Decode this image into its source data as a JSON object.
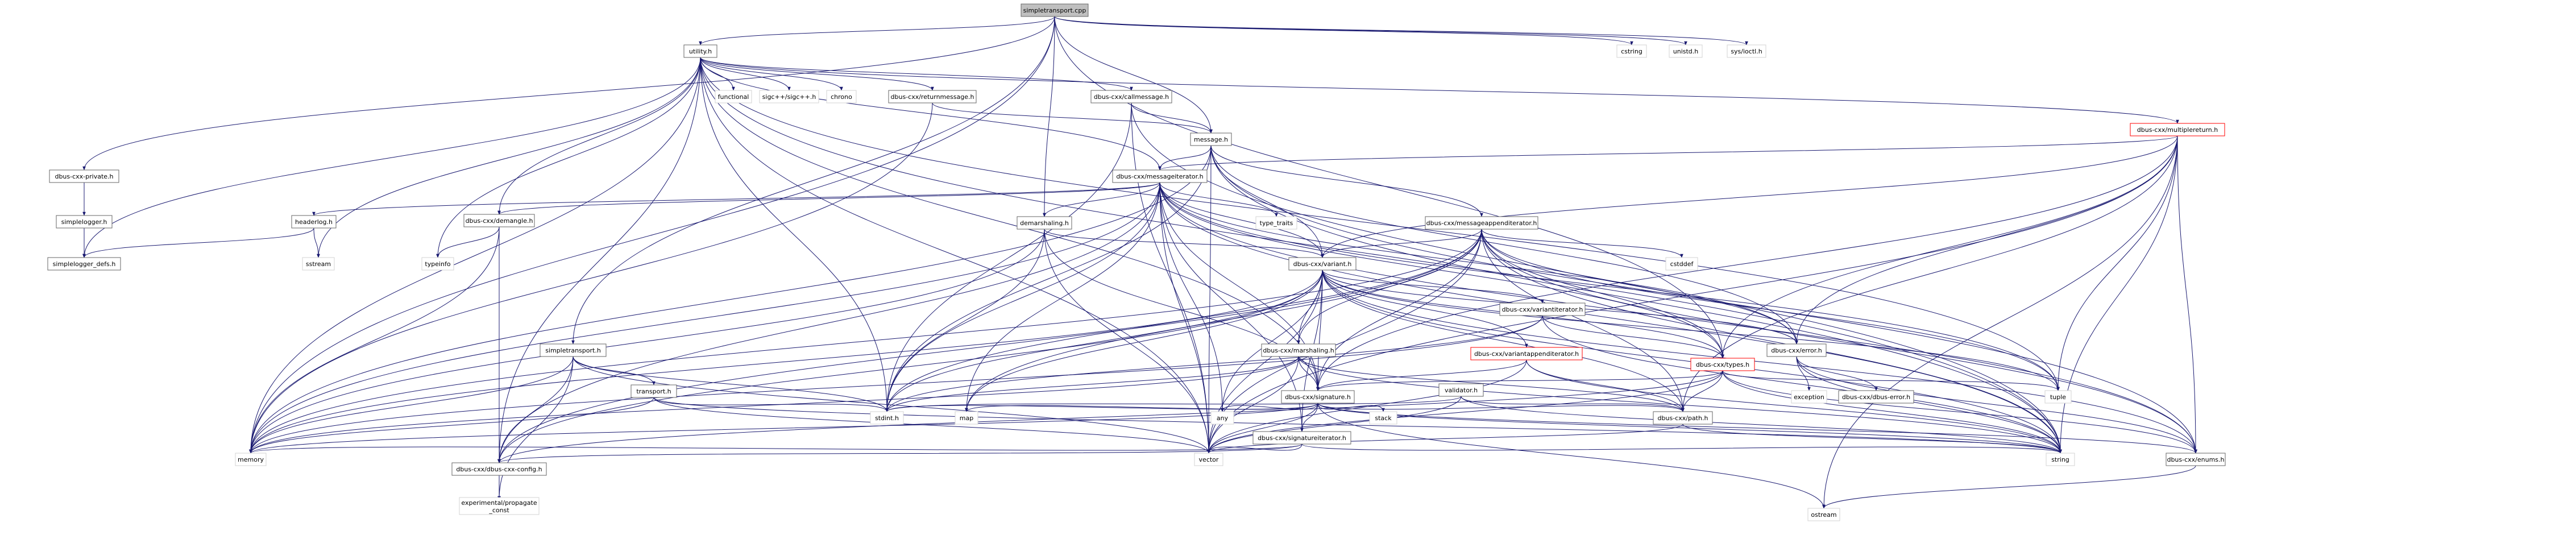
{
  "graph": {
    "nodes": [
      {
        "id": "simpletransport_cpp",
        "label": "simpletransport.cpp",
        "kind": "root"
      },
      {
        "id": "utility_h",
        "label": "utility.h",
        "kind": "internal"
      },
      {
        "id": "cstring",
        "label": "cstring",
        "kind": "system"
      },
      {
        "id": "unistd_h",
        "label": "unistd.h",
        "kind": "system"
      },
      {
        "id": "sys_ioctl_h",
        "label": "sys/ioctl.h",
        "kind": "system"
      },
      {
        "id": "functional",
        "label": "functional",
        "kind": "system"
      },
      {
        "id": "sigc_h",
        "label": "sigc++/sigc++.h",
        "kind": "system"
      },
      {
        "id": "chrono",
        "label": "chrono",
        "kind": "system"
      },
      {
        "id": "returnmessage_h",
        "label": "dbus-cxx/returnmessage.h",
        "kind": "internal"
      },
      {
        "id": "callmessage_h",
        "label": "dbus-cxx/callmessage.h",
        "kind": "internal"
      },
      {
        "id": "multiplereturn_h",
        "label": "dbus-cxx/multiplereturn.h",
        "kind": "internal-red"
      },
      {
        "id": "message_h",
        "label": "message.h",
        "kind": "internal"
      },
      {
        "id": "dbus_private_h",
        "label": "dbus-cxx-private.h",
        "kind": "internal"
      },
      {
        "id": "simplelogger_h",
        "label": "simplelogger.h",
        "kind": "internal"
      },
      {
        "id": "simplelogger_defs_h",
        "label": "simplelogger_defs.h",
        "kind": "internal"
      },
      {
        "id": "messageiterator_h",
        "label": "dbus-cxx/messageiterator.h",
        "kind": "internal"
      },
      {
        "id": "headerlog_h",
        "label": "headerlog.h",
        "kind": "internal"
      },
      {
        "id": "sstream",
        "label": "sstream",
        "kind": "system"
      },
      {
        "id": "demangle_h",
        "label": "dbus-cxx/demangle.h",
        "kind": "internal"
      },
      {
        "id": "typeinfo",
        "label": "typeinfo",
        "kind": "system"
      },
      {
        "id": "demarshaling_h",
        "label": "demarshaling.h",
        "kind": "internal"
      },
      {
        "id": "type_traits",
        "label": "type_traits",
        "kind": "system"
      },
      {
        "id": "messageappenditerator_h",
        "label": "dbus-cxx/messageappenditerator.h",
        "kind": "internal"
      },
      {
        "id": "cstddef",
        "label": "cstddef",
        "kind": "system"
      },
      {
        "id": "variant_h",
        "label": "dbus-cxx/variant.h",
        "kind": "internal"
      },
      {
        "id": "variantiterator_h",
        "label": "dbus-cxx/variantiterator.h",
        "kind": "internal"
      },
      {
        "id": "simpletransport_h",
        "label": "simpletransport.h",
        "kind": "internal"
      },
      {
        "id": "marshaling_h",
        "label": "dbus-cxx/marshaling.h",
        "kind": "internal"
      },
      {
        "id": "variantappenditerator_h",
        "label": "dbus-cxx/variantappenditerator.h",
        "kind": "internal-red"
      },
      {
        "id": "types_h",
        "label": "dbus-cxx/types.h",
        "kind": "internal-red"
      },
      {
        "id": "error_h",
        "label": "dbus-cxx/error.h",
        "kind": "internal"
      },
      {
        "id": "exception",
        "label": "exception",
        "kind": "system"
      },
      {
        "id": "dbus_error_h",
        "label": "dbus-cxx/dbus-error.h",
        "kind": "internal"
      },
      {
        "id": "tuple",
        "label": "tuple",
        "kind": "system"
      },
      {
        "id": "transport_h",
        "label": "transport.h",
        "kind": "internal"
      },
      {
        "id": "signature_h",
        "label": "dbus-cxx/signature.h",
        "kind": "internal"
      },
      {
        "id": "validator_h",
        "label": "validator.h",
        "kind": "internal"
      },
      {
        "id": "stdint_h",
        "label": "stdint.h",
        "kind": "system"
      },
      {
        "id": "map",
        "label": "map",
        "kind": "system"
      },
      {
        "id": "any",
        "label": "any",
        "kind": "system"
      },
      {
        "id": "stack",
        "label": "stack",
        "kind": "system"
      },
      {
        "id": "path_h",
        "label": "dbus-cxx/path.h",
        "kind": "internal"
      },
      {
        "id": "signatureiterator_h",
        "label": "dbus-cxx/signatureiterator.h",
        "kind": "internal"
      },
      {
        "id": "memory",
        "label": "memory",
        "kind": "system"
      },
      {
        "id": "dbus_cxx_config_h",
        "label": "dbus-cxx/dbus-cxx-config.h",
        "kind": "internal"
      },
      {
        "id": "vector",
        "label": "vector",
        "kind": "system"
      },
      {
        "id": "string",
        "label": "string",
        "kind": "system"
      },
      {
        "id": "enums_h",
        "label": "dbus-cxx/enums.h",
        "kind": "internal"
      },
      {
        "id": "propagate_const",
        "label": "experimental/propagate\n_const",
        "kind": "system"
      },
      {
        "id": "ostream",
        "label": "ostream",
        "kind": "system"
      }
    ],
    "edges": [
      [
        "simpletransport_cpp",
        "utility_h"
      ],
      [
        "simpletransport_cpp",
        "cstring"
      ],
      [
        "simpletransport_cpp",
        "unistd_h"
      ],
      [
        "simpletransport_cpp",
        "sys_ioctl_h"
      ],
      [
        "simpletransport_cpp",
        "dbus_private_h"
      ],
      [
        "simpletransport_cpp",
        "simpletransport_h"
      ],
      [
        "simpletransport_cpp",
        "memory"
      ],
      [
        "simpletransport_cpp",
        "message_h"
      ],
      [
        "simpletransport_cpp",
        "demarshaling_h"
      ],
      [
        "simpletransport_cpp",
        "types_h"
      ],
      [
        "utility_h",
        "functional"
      ],
      [
        "utility_h",
        "sigc_h"
      ],
      [
        "utility_h",
        "chrono"
      ],
      [
        "utility_h",
        "returnmessage_h"
      ],
      [
        "utility_h",
        "callmessage_h"
      ],
      [
        "utility_h",
        "multiplereturn_h"
      ],
      [
        "utility_h",
        "messageiterator_h"
      ],
      [
        "utility_h",
        "demangle_h"
      ],
      [
        "utility_h",
        "simplelogger_defs_h"
      ],
      [
        "utility_h",
        "sstream"
      ],
      [
        "utility_h",
        "typeinfo"
      ],
      [
        "utility_h",
        "stdint_h"
      ],
      [
        "utility_h",
        "memory"
      ],
      [
        "utility_h",
        "signature_h"
      ],
      [
        "utility_h",
        "string"
      ],
      [
        "utility_h",
        "tuple"
      ],
      [
        "utility_h",
        "dbus_cxx_config_h"
      ],
      [
        "utility_h",
        "vector"
      ],
      [
        "returnmessage_h",
        "message_h"
      ],
      [
        "returnmessage_h",
        "memory"
      ],
      [
        "callmessage_h",
        "message_h"
      ],
      [
        "callmessage_h",
        "vector"
      ],
      [
        "callmessage_h",
        "string"
      ],
      [
        "callmessage_h",
        "stdint_h"
      ],
      [
        "multiplereturn_h",
        "messageiterator_h"
      ],
      [
        "multiplereturn_h",
        "tuple"
      ],
      [
        "multiplereturn_h",
        "signature_h"
      ],
      [
        "multiplereturn_h",
        "string"
      ],
      [
        "multiplereturn_h",
        "enums_h"
      ],
      [
        "multiplereturn_h",
        "ostream"
      ],
      [
        "multiplereturn_h",
        "error_h"
      ],
      [
        "multiplereturn_h",
        "types_h"
      ],
      [
        "multiplereturn_h",
        "variant_h"
      ],
      [
        "multiplereturn_h",
        "path_h"
      ],
      [
        "multiplereturn_h",
        "vector"
      ],
      [
        "message_h",
        "messageiterator_h"
      ],
      [
        "message_h",
        "messageappenditerator_h"
      ],
      [
        "message_h",
        "memory"
      ],
      [
        "message_h",
        "stdint_h"
      ],
      [
        "message_h",
        "string"
      ],
      [
        "message_h",
        "vector"
      ],
      [
        "message_h",
        "enums_h"
      ],
      [
        "message_h",
        "error_h"
      ],
      [
        "message_h",
        "variant_h"
      ],
      [
        "dbus_private_h",
        "simplelogger_h"
      ],
      [
        "dbus_private_h",
        "simplelogger_defs_h"
      ],
      [
        "simplelogger_h",
        "simplelogger_defs_h"
      ],
      [
        "messageiterator_h",
        "headerlog_h"
      ],
      [
        "messageiterator_h",
        "demangle_h"
      ],
      [
        "messageiterator_h",
        "demarshaling_h"
      ],
      [
        "messageiterator_h",
        "type_traits"
      ],
      [
        "messageiterator_h",
        "variant_h"
      ],
      [
        "messageiterator_h",
        "signature_h"
      ],
      [
        "messageiterator_h",
        "stdint_h"
      ],
      [
        "messageiterator_h",
        "map"
      ],
      [
        "messageiterator_h",
        "memory"
      ],
      [
        "messageiterator_h",
        "string"
      ],
      [
        "messageiterator_h",
        "tuple"
      ],
      [
        "messageiterator_h",
        "vector"
      ],
      [
        "messageiterator_h",
        "error_h"
      ],
      [
        "messageiterator_h",
        "types_h"
      ],
      [
        "messageiterator_h",
        "dbus_cxx_config_h"
      ],
      [
        "messageiterator_h",
        "enums_h"
      ],
      [
        "messageiterator_h",
        "signatureiterator_h"
      ],
      [
        "messageiterator_h",
        "any"
      ],
      [
        "headerlog_h",
        "sstream"
      ],
      [
        "headerlog_h",
        "simplelogger_defs_h"
      ],
      [
        "demangle_h",
        "typeinfo"
      ],
      [
        "demangle_h",
        "memory"
      ],
      [
        "demangle_h",
        "dbus_cxx_config_h"
      ],
      [
        "demarshaling_h",
        "variant_h"
      ],
      [
        "demarshaling_h",
        "signature_h"
      ],
      [
        "demarshaling_h",
        "stdint_h"
      ],
      [
        "demarshaling_h",
        "memory"
      ],
      [
        "demarshaling_h",
        "vector"
      ],
      [
        "messageappenditerator_h",
        "variant_h"
      ],
      [
        "messageappenditerator_h",
        "cstddef"
      ],
      [
        "messageappenditerator_h",
        "marshaling_h"
      ],
      [
        "messageappenditerator_h",
        "signature_h"
      ],
      [
        "messageappenditerator_h",
        "string"
      ],
      [
        "messageappenditerator_h",
        "tuple"
      ],
      [
        "messageappenditerator_h",
        "vector"
      ],
      [
        "messageappenditerator_h",
        "memory"
      ],
      [
        "messageappenditerator_h",
        "enums_h"
      ],
      [
        "messageappenditerator_h",
        "error_h"
      ],
      [
        "messageappenditerator_h",
        "path_h"
      ],
      [
        "messageappenditerator_h",
        "types_h"
      ],
      [
        "messageappenditerator_h",
        "map"
      ],
      [
        "messageappenditerator_h",
        "stdint_h"
      ],
      [
        "messageappenditerator_h",
        "dbus_cxx_config_h"
      ],
      [
        "variant_h",
        "variantiterator_h"
      ],
      [
        "variant_h",
        "marshaling_h"
      ],
      [
        "variant_h",
        "variantappenditerator_h"
      ],
      [
        "variant_h",
        "types_h"
      ],
      [
        "variant_h",
        "error_h"
      ],
      [
        "variant_h",
        "signature_h"
      ],
      [
        "variant_h",
        "path_h"
      ],
      [
        "variant_h",
        "stdint_h"
      ],
      [
        "variant_h",
        "map"
      ],
      [
        "variant_h",
        "any"
      ],
      [
        "variant_h",
        "memory"
      ],
      [
        "variant_h",
        "vector"
      ],
      [
        "variant_h",
        "string"
      ],
      [
        "variant_h",
        "tuple"
      ],
      [
        "variant_h",
        "enums_h"
      ],
      [
        "variant_h",
        "dbus_cxx_config_h"
      ],
      [
        "variant_h",
        "signatureiterator_h"
      ],
      [
        "variantiterator_h",
        "types_h"
      ],
      [
        "variantiterator_h",
        "memory"
      ],
      [
        "variantiterator_h",
        "stdint_h"
      ],
      [
        "variantiterator_h",
        "string"
      ],
      [
        "simpletransport_h",
        "transport_h"
      ],
      [
        "simpletransport_h",
        "memory"
      ],
      [
        "simpletransport_h",
        "stdint_h"
      ],
      [
        "simpletransport_h",
        "vector"
      ],
      [
        "simpletransport_h",
        "dbus_cxx_config_h"
      ],
      [
        "simpletransport_h",
        "propagate_const"
      ],
      [
        "transport_h",
        "memory"
      ],
      [
        "transport_h",
        "vector"
      ],
      [
        "transport_h",
        "stdint_h"
      ],
      [
        "transport_h",
        "string"
      ],
      [
        "marshaling_h",
        "signature_h"
      ],
      [
        "marshaling_h",
        "path_h"
      ],
      [
        "marshaling_h",
        "stdint_h"
      ],
      [
        "marshaling_h",
        "vector"
      ],
      [
        "marshaling_h",
        "string"
      ],
      [
        "marshaling_h",
        "memory"
      ],
      [
        "variantappenditerator_h",
        "signature_h"
      ],
      [
        "variantappenditerator_h",
        "path_h"
      ],
      [
        "variantappenditerator_h",
        "string"
      ],
      [
        "variantappenditerator_h",
        "vector"
      ],
      [
        "types_h",
        "tuple"
      ],
      [
        "types_h",
        "path_h"
      ],
      [
        "types_h",
        "signature_h"
      ],
      [
        "types_h",
        "string"
      ],
      [
        "types_h",
        "vector"
      ],
      [
        "types_h",
        "enums_h"
      ],
      [
        "types_h",
        "dbus_cxx_config_h"
      ],
      [
        "error_h",
        "exception"
      ],
      [
        "error_h",
        "dbus_error_h"
      ],
      [
        "error_h",
        "string"
      ],
      [
        "error_h",
        "enums_h"
      ],
      [
        "signature_h",
        "signatureiterator_h"
      ],
      [
        "signature_h",
        "stack"
      ],
      [
        "signature_h",
        "any"
      ],
      [
        "signature_h",
        "map"
      ],
      [
        "signature_h",
        "stdint_h"
      ],
      [
        "signature_h",
        "string"
      ],
      [
        "signature_h",
        "vector"
      ],
      [
        "signature_h",
        "memory"
      ],
      [
        "signature_h",
        "enums_h"
      ],
      [
        "signature_h",
        "path_h"
      ],
      [
        "signature_h",
        "ostream"
      ],
      [
        "validator_h",
        "path_h"
      ],
      [
        "validator_h",
        "vector"
      ],
      [
        "validator_h",
        "string"
      ],
      [
        "validator_h",
        "stdint_h"
      ],
      [
        "path_h",
        "string"
      ],
      [
        "path_h",
        "vector"
      ],
      [
        "signatureiterator_h",
        "memory"
      ],
      [
        "signatureiterator_h",
        "vector"
      ],
      [
        "signatureiterator_h",
        "string"
      ],
      [
        "signatureiterator_h",
        "dbus_cxx_config_h"
      ],
      [
        "dbus_cxx_config_h",
        "propagate_const"
      ],
      [
        "enums_h",
        "ostream"
      ]
    ]
  },
  "colors": {
    "root_fill": "#bfbfbf",
    "internal_fill": "#ffffff",
    "internal_stroke": "#666666",
    "red_stroke": "#ff0000",
    "system_fill": "#ffffff",
    "system_stroke": "#d3d3d3",
    "system_text": "#000000",
    "edge": "#191970"
  }
}
